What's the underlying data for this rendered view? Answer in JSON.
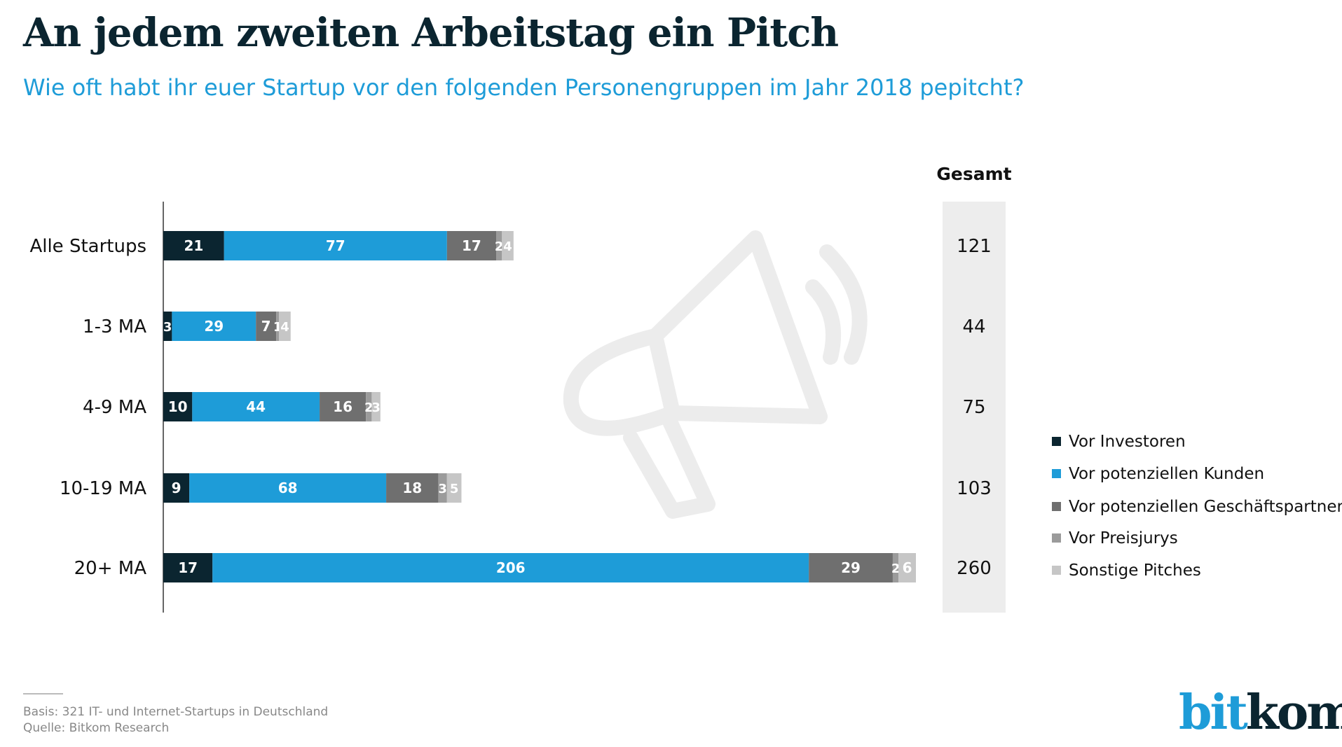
{
  "title": "An jedem zweiten Arbeitstag ein Pitch",
  "subtitle": "Wie oft habt ihr euer Startup vor den folgenden Personengruppen im Jahr 2018 pepitcht?",
  "footer": {
    "basis": "Basis: 321 IT- und Internet-Startups in Deutschland",
    "quelle": "Quelle: Bitkom Research"
  },
  "logo": {
    "part1": "bit",
    "part2": "kom"
  },
  "chart_data": {
    "type": "bar",
    "orientation": "horizontal",
    "stacked": true,
    "categories": [
      "Alle Startups",
      "1-3 MA",
      "4-9 MA",
      "10-19 MA",
      "20+ MA"
    ],
    "series": [
      {
        "name": "Vor Investoren",
        "color": "#0b2530",
        "values": [
          21,
          3,
          10,
          9,
          17
        ]
      },
      {
        "name": "Vor potenziellen Kunden",
        "color": "#1e9cd8",
        "values": [
          77,
          29,
          44,
          68,
          206
        ]
      },
      {
        "name": "Vor potenziellen Geschäftspartnern",
        "color": "#6f6f6f",
        "values": [
          17,
          7,
          16,
          18,
          29
        ]
      },
      {
        "name": "Vor Preisjurys",
        "color": "#9b9b9b",
        "values": [
          2,
          1,
          2,
          3,
          2
        ]
      },
      {
        "name": "Sonstige Pitches",
        "color": "#c6c6c6",
        "values": [
          4,
          4,
          3,
          5,
          6
        ]
      }
    ],
    "total_label": "Gesamt",
    "totals": [
      121,
      44,
      75,
      103,
      260
    ],
    "legend": "right",
    "grid": false,
    "xlim": [
      0,
      260
    ]
  }
}
